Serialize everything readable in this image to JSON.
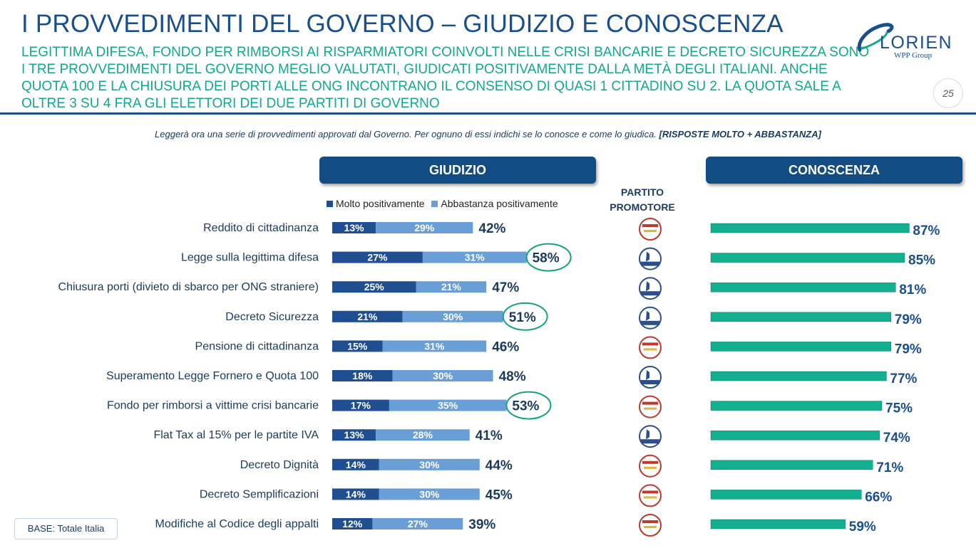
{
  "header": {
    "title": "I PROVVEDIMENTI DEL GOVERNO – GIUDIZIO E CONOSCENZA",
    "subtitle": "LEGITTIMA DIFESA, FONDO PER RIMBORSI AI RISPARMIATORI COINVOLTI NELLE CRISI BANCARIE E DECRETO SICUREZZA SONO I TRE PROVVEDIMENTI DEL GOVERNO MEGLIO VALUTATI, GIUDICATI POSITIVAMENTE DALLA METÀ DEGLI ITALIANI. ANCHE QUOTA 100 E LA CHIUSURA DEI PORTI ALLE ONG INCONTRANO IL CONSENSO DI QUASI 1 CITTADINO SU 2. LA QUOTA SALE A OLTRE 3 SU 4 FRA GLI ELETTORI DEI DUE PARTITI DI GOVERNO",
    "page_number": "25"
  },
  "logo": {
    "name": "LORIEN",
    "sub": "WPP Group"
  },
  "question": "Leggerà ora una serie di provvedimenti approvati dal Governo. Per ognuno di essi indichi se lo conosce e come lo giudica.",
  "question_bold": "[RISPOSTE MOLTO + ABBASTANZA]",
  "headers": {
    "giudizio": "GIUDIZIO",
    "conoscenza": "CONOSCENZA",
    "partito_line1": "PARTITO",
    "partito_line2": "PROMOTORE"
  },
  "base": "BASE: Totale Italia",
  "colors": {
    "dark_blue": "#1f4e91",
    "light_blue": "#6a9ed6",
    "green": "#13b08f",
    "circle": "#13a37f",
    "title": "#1b4f8c",
    "subtitle": "#14a88a"
  },
  "party_icons": {
    "M5S": "movimento-5-stelle-logo-icon",
    "Lega": "lega-salvini-logo-icon"
  },
  "chart_data": {
    "type": "bar",
    "categories": [
      "Reddito di cittadinanza",
      "Legge sulla legittima difesa",
      "Chiusura porti (divieto di sbarco per ONG straniere)",
      "Decreto Sicurezza",
      "Pensione di cittadinanza",
      "Superamento Legge Fornero e Quota 100",
      "Fondo per rimborsi a vittime crisi bancarie",
      "Flat Tax al 15% per le partite IVA",
      "Decreto Dignità",
      "Decreto Semplificazioni",
      "Modifiche al Codice degli appalti"
    ],
    "series": [
      {
        "name": "Molto positivamente",
        "values": [
          13,
          27,
          25,
          21,
          15,
          18,
          17,
          13,
          14,
          14,
          12
        ],
        "labels": [
          "13%",
          "27%",
          "25%",
          "21%",
          "15%",
          "18%",
          "17%",
          "13%",
          "14%",
          "14%",
          "12%"
        ]
      },
      {
        "name": "Abbastanza positivamente",
        "values": [
          29,
          31,
          21,
          30,
          31,
          30,
          35,
          28,
          30,
          30,
          27
        ],
        "labels": [
          "29%",
          "31%",
          "21%",
          "30%",
          "31%",
          "30%",
          "35%",
          "28%",
          "30%",
          "30%",
          "27%"
        ]
      }
    ],
    "totals": [
      42,
      58,
      47,
      51,
      46,
      48,
      53,
      41,
      44,
      45,
      39
    ],
    "total_labels": [
      "42%",
      "58%",
      "47%",
      "51%",
      "46%",
      "48%",
      "53%",
      "41%",
      "44%",
      "45%",
      "39%"
    ],
    "highlighted": [
      false,
      true,
      false,
      true,
      false,
      false,
      true,
      false,
      false,
      false,
      false
    ],
    "partito": [
      "M5S",
      "Lega",
      "Lega",
      "Lega",
      "M5S",
      "Lega",
      "M5S",
      "Lega",
      "M5S",
      "M5S",
      "M5S"
    ],
    "conoscenza": {
      "values": [
        87,
        85,
        81,
        79,
        79,
        77,
        75,
        74,
        71,
        66,
        59
      ],
      "labels": [
        "87%",
        "85%",
        "81%",
        "79%",
        "79%",
        "77%",
        "75%",
        "74%",
        "71%",
        "66%",
        "59%"
      ]
    },
    "stacked": true,
    "legend_position": "top"
  }
}
